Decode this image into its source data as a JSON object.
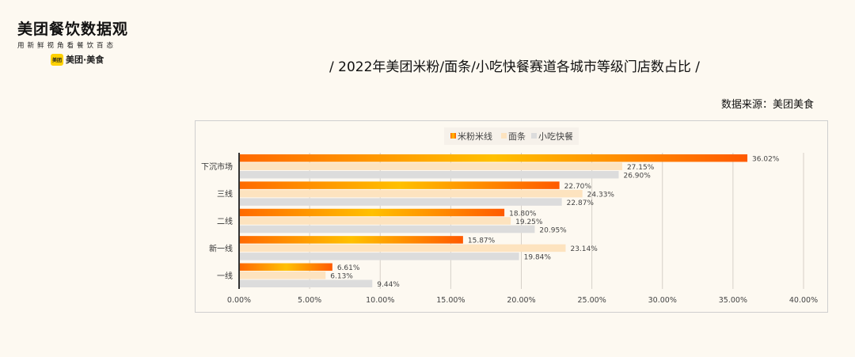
{
  "logo": {
    "title": "美团餐饮数据观",
    "subtitle": "用新鲜视角看餐饮百态",
    "brand": "美团·美食",
    "badge": "美团"
  },
  "header": {
    "title": "/  2022年美团米粉/面条/小吃快餐赛道各城市等级门店数占比  /",
    "source": "数据来源：美团美食"
  },
  "chart_data": {
    "type": "bar",
    "orientation": "horizontal",
    "categories": [
      "下沉市场",
      "三线",
      "二线",
      "新一线",
      "一线"
    ],
    "series": [
      {
        "name": "米粉米线",
        "values": [
          36.02,
          22.7,
          18.8,
          15.87,
          6.61
        ],
        "color": "#ff6a00"
      },
      {
        "name": "面条",
        "values": [
          27.15,
          24.33,
          19.25,
          23.14,
          6.13
        ],
        "color": "#fde3bf"
      },
      {
        "name": "小吃快餐",
        "values": [
          26.9,
          22.87,
          20.95,
          19.84,
          9.44
        ],
        "color": "#dcdcdc"
      }
    ],
    "xlim": [
      0,
      40
    ],
    "xticks": [
      "0.00%",
      "5.00%",
      "10.00%",
      "15.00%",
      "20.00%",
      "25.00%",
      "30.00%",
      "35.00%",
      "40.00%"
    ],
    "grid": true,
    "legend": "top"
  }
}
